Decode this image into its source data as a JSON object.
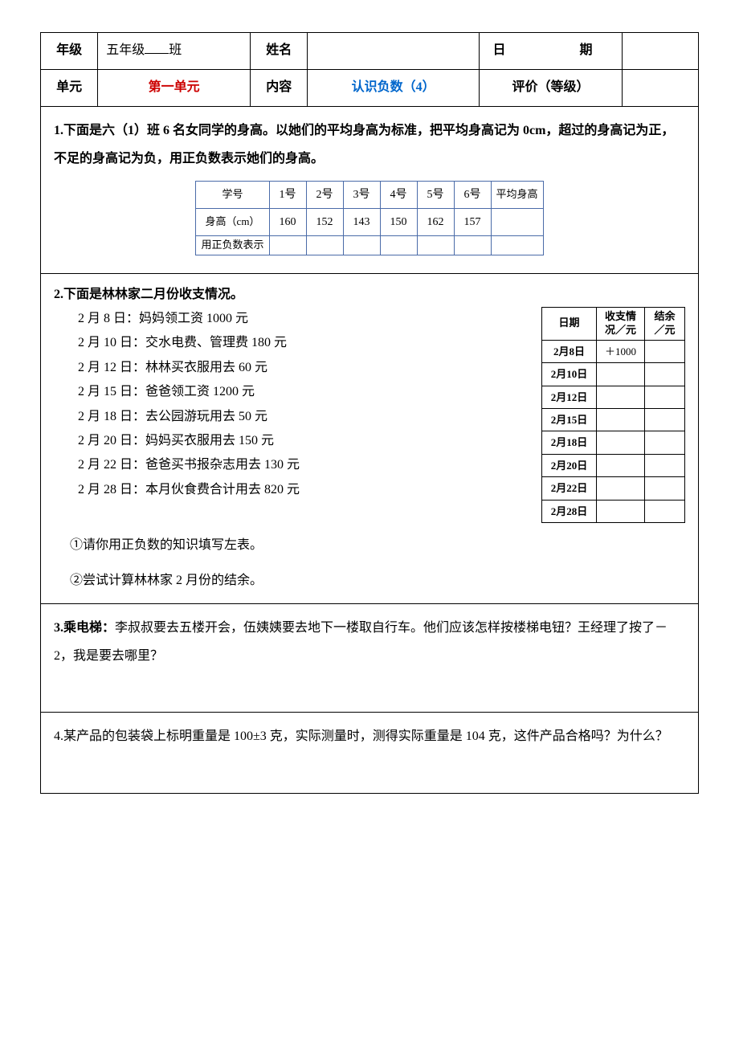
{
  "header": {
    "grade_label": "年级",
    "grade_value_prefix": "五年级",
    "grade_value_suffix": "班",
    "name_label": "姓名",
    "date_label": "日　　期",
    "unit_label": "单元",
    "unit_value": "第一单元",
    "content_label": "内容",
    "content_value": "认识负数（4）",
    "eval_label": "评价（等级）"
  },
  "q1": {
    "title": "1.下面是六（1）班 6 名女同学的身高。以她们的平均身高为标准，把平均身高记为 0cm，超过的身高记为正，不足的身高记为负，用正负数表示她们的身高。",
    "table": {
      "row_headers": [
        "学号",
        "身高（cm）",
        "用正负数表示"
      ],
      "col_headers": [
        "1号",
        "2号",
        "3号",
        "4号",
        "5号",
        "6号",
        "平均身高"
      ],
      "heights": [
        "160",
        "152",
        "143",
        "150",
        "162",
        "157",
        ""
      ]
    }
  },
  "q2": {
    "title": "2.下面是林林家二月份收支情况。",
    "items": [
      "2 月 8 日：妈妈领工资 1000 元",
      "2 月 10 日：交水电费、管理费 180 元",
      "2 月 12 日：林林买衣服用去 60 元",
      "2 月 15 日：爸爸领工资 1200 元",
      "2 月 18 日：去公园游玩用去 50 元",
      "2 月 20 日：妈妈买衣服用去 150 元",
      "2 月 22 日：爸爸买书报杂志用去 130 元",
      "2 月 28 日：本月伙食费合计用去 820 元"
    ],
    "finance_table": {
      "headers": [
        "日期",
        "收支情况／元",
        "结余／元"
      ],
      "rows": [
        {
          "date": "2月8日",
          "amount": "＋1000",
          "balance": ""
        },
        {
          "date": "2月10日",
          "amount": "",
          "balance": ""
        },
        {
          "date": "2月12日",
          "amount": "",
          "balance": ""
        },
        {
          "date": "2月15日",
          "amount": "",
          "balance": ""
        },
        {
          "date": "2月18日",
          "amount": "",
          "balance": ""
        },
        {
          "date": "2月20日",
          "amount": "",
          "balance": ""
        },
        {
          "date": "2月22日",
          "amount": "",
          "balance": ""
        },
        {
          "date": "2月28日",
          "amount": "",
          "balance": ""
        }
      ]
    },
    "sub1": "①请你用正负数的知识填写左表。",
    "sub2": "②尝试计算林林家 2 月份的结余。"
  },
  "q3": {
    "prefix": "3.乘电梯：",
    "text": "李叔叔要去五楼开会，伍姨姨要去地下一楼取自行车。他们应该怎样按楼梯电钮？王经理了按了－2，我是要去哪里？"
  },
  "q4": {
    "text": "4.某产品的包装袋上标明重量是 100±3 克，实际测量时，测得实际重量是 104 克，这件产品合格吗？为什么？"
  }
}
